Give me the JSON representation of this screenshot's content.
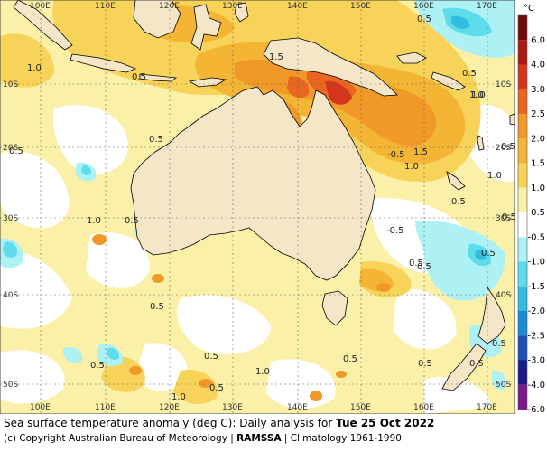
{
  "map": {
    "lon_labels_top": [
      "100E",
      "110E",
      "120E",
      "130E",
      "140E",
      "150E",
      "160E",
      "170E"
    ],
    "lon_labels_bottom": [
      "100E",
      "110E",
      "120E",
      "130E",
      "140E",
      "150E",
      "160E",
      "170E"
    ],
    "lat_labels": [
      "10S",
      "20S",
      "30S",
      "40S",
      "50S"
    ],
    "contour_labels": [
      "1.0",
      "0.5",
      "1.5",
      "0.5",
      "1.0",
      "0.5",
      "0.5",
      "1.0",
      "0.5",
      "0.5",
      "-0.5",
      "1.0",
      "1.5",
      "1.0",
      "0.5",
      "-0.5",
      "0.5",
      "0.5",
      "0.5",
      "0.5",
      "0.5",
      "0.5",
      "0.5",
      "0.5",
      "1.0",
      "0.5",
      "0.5",
      "0.5",
      "0.5",
      "1.0",
      "1.0",
      "0.5"
    ],
    "colors": {
      "land": "#f5e6c8",
      "gridline": "#666666",
      "very_warm": "#d4361c",
      "warm_3": "#e9661f",
      "warm_2": "#f09828",
      "warm_15": "#f5b534",
      "warm_1": "#f8d35a",
      "warm_05": "#fbf0a8",
      "cool_05": "#aef1f4",
      "cool_1": "#5fdcec",
      "cool_15": "#2fbde0"
    }
  },
  "legend": {
    "unit": "°C",
    "ticks": [
      "6.0",
      "4.0",
      "3.0",
      "2.5",
      "2.0",
      "1.5",
      "1.0",
      "0.5",
      "-0.5",
      "-1.0",
      "-1.5",
      "-2.0",
      "-2.5",
      "-3.0",
      "-4.0",
      "-6.0"
    ],
    "colors": [
      "#6e0c0c",
      "#a81a12",
      "#d4361c",
      "#e9661f",
      "#f09828",
      "#f5b534",
      "#f8d35a",
      "#fbf0a8",
      "#ffffff",
      "#aef1f4",
      "#5fdcec",
      "#2fbde0",
      "#1a8cd6",
      "#1a4fb5",
      "#1a1a8a",
      "#7a1a8a"
    ]
  },
  "caption": {
    "line1_prefix": "Sea surface temperature anomaly (deg C): Daily analysis for ",
    "line1_date": "Tue 25 Oct 2022",
    "line2_prefix": "(c) Copyright Australian Bureau of Meteorology | ",
    "line2_bold": "RAMSSA",
    "line2_suffix": " | Climatology 1961-1990"
  }
}
